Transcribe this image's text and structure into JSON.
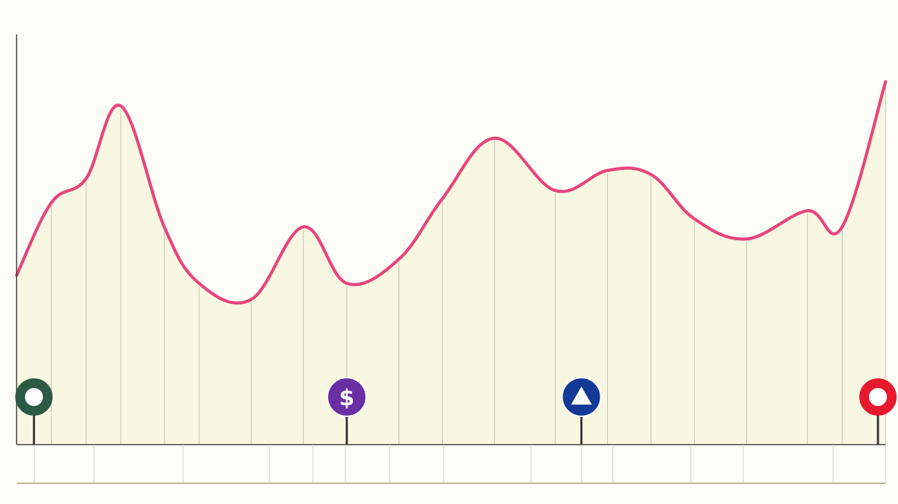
{
  "chart_data": {
    "type": "area",
    "title": "",
    "xlabel": "",
    "ylabel": "",
    "ylim": [
      0,
      100
    ],
    "x": [
      0,
      4,
      8,
      12,
      17,
      21,
      27,
      33,
      38,
      44,
      49,
      55,
      62,
      68,
      73,
      78,
      84,
      91,
      95,
      100
    ],
    "series": [
      {
        "values": [
          42,
          60,
          66,
          84,
          54,
          40,
          36,
          54,
          40,
          46,
          61,
          76,
          63,
          68,
          67,
          56,
          51,
          58,
          54,
          90
        ]
      }
    ],
    "markers": [
      {
        "x": 2,
        "icon": "ring-icon",
        "color": "#2d5a45",
        "glyph": ""
      },
      {
        "x": 38,
        "icon": "dollar-icon",
        "color": "#6a2fa3",
        "glyph": "$"
      },
      {
        "x": 65,
        "icon": "triangle-icon",
        "color": "#123a96",
        "glyph": ""
      },
      {
        "x": 100,
        "icon": "ring-icon",
        "color": "#e8192f",
        "glyph": ""
      }
    ],
    "colors": {
      "line": "#e8447c",
      "area": "#f8f8e2",
      "axis": "#3a3a3a",
      "gridline": "#bdbdb4",
      "background": "#fdfdf7"
    },
    "grid": true,
    "legend": "none"
  }
}
